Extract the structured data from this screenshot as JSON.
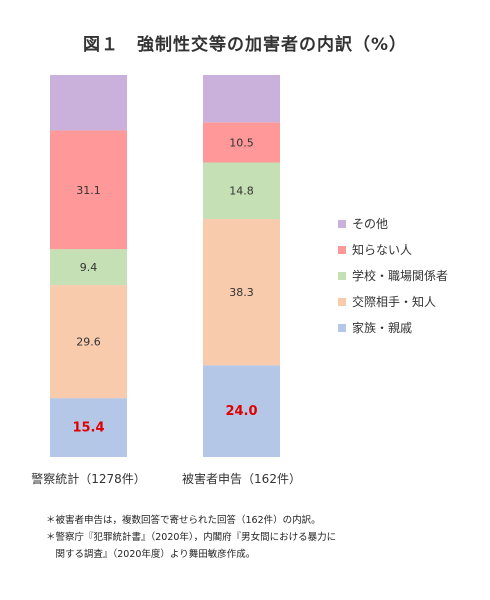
{
  "chart_data": {
    "type": "bar",
    "stacked": true,
    "title": "図１　強制性交等の加害者の内訳（%）",
    "categories": [
      "警察統計（1278件）",
      "被害者申告（162件）"
    ],
    "series": [
      {
        "name": "家族・親戚",
        "color": "#b4c7e7",
        "values": [
          15.4,
          24.0
        ],
        "labels": [
          "15.4",
          "24.0"
        ],
        "highlight": true
      },
      {
        "name": "交際相手・知人",
        "color": "#f8cbad",
        "values": [
          29.6,
          38.3
        ],
        "labels": [
          "29.6",
          "38.3"
        ]
      },
      {
        "name": "学校・職場関係者",
        "color": "#c5e0b4",
        "values": [
          9.4,
          14.8
        ],
        "labels": [
          "9.4",
          "14.8"
        ]
      },
      {
        "name": "知らない人",
        "color": "#ff9999",
        "values": [
          31.1,
          10.5
        ],
        "labels": [
          "31.1",
          "10.5"
        ]
      },
      {
        "name": "その他",
        "color": "#c9b1dc",
        "values": [
          14.5,
          12.4
        ],
        "labels": [
          "",
          ""
        ]
      }
    ],
    "legend_order": [
      "その他",
      "知らない人",
      "学校・職場関係者",
      "交際相手・知人",
      "家族・親戚"
    ],
    "legend_position": "right",
    "ylim": [
      0,
      100
    ],
    "grid": false
  },
  "notes": [
    "＊被害者申告は，複数回答で寄せられた回答（162件）の内訳。",
    "＊警察庁『犯罪統計書』（2020年），内閣府『男女間における暴力に",
    "　関する調査』（2020年度）より舞田敏彦作成。"
  ]
}
